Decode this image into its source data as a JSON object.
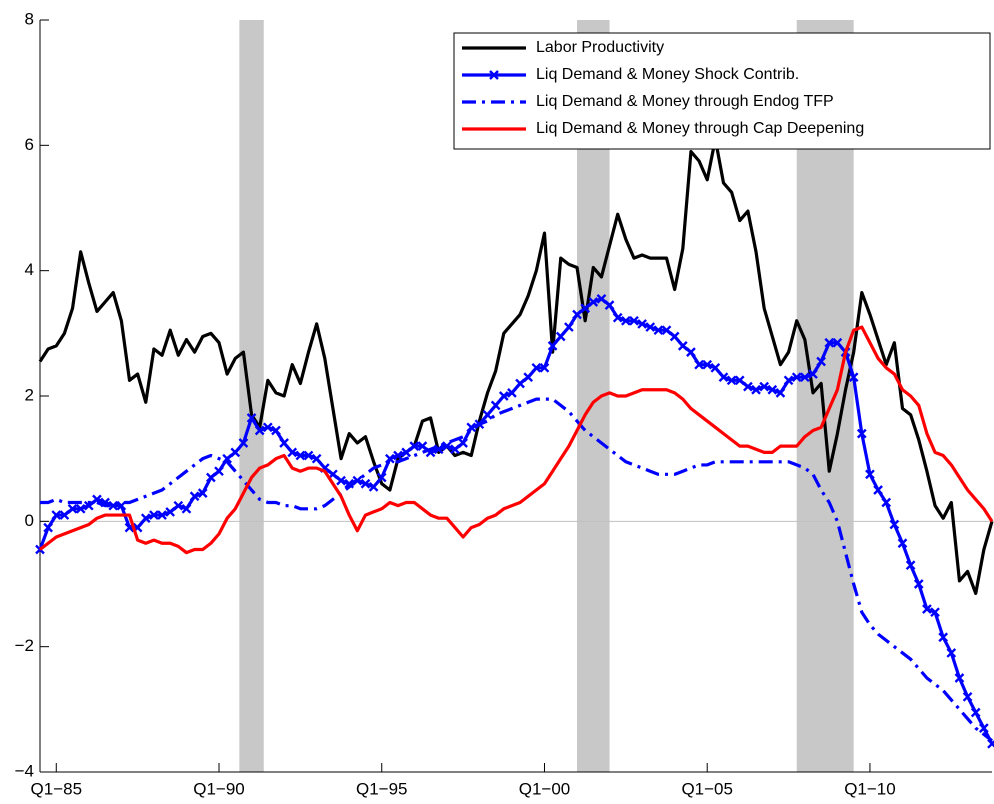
{
  "chart_data": {
    "type": "line",
    "x": [
      1984.5,
      1984.75,
      1985,
      1985.25,
      1985.5,
      1985.75,
      1986,
      1986.25,
      1986.5,
      1986.75,
      1987,
      1987.25,
      1987.5,
      1987.75,
      1988,
      1988.25,
      1988.5,
      1988.75,
      1989,
      1989.25,
      1989.5,
      1989.75,
      1990,
      1990.25,
      1990.5,
      1990.75,
      1991,
      1991.25,
      1991.5,
      1991.75,
      1992,
      1992.25,
      1992.5,
      1992.75,
      1993,
      1993.25,
      1993.5,
      1993.75,
      1994,
      1994.25,
      1994.5,
      1994.75,
      1995,
      1995.25,
      1995.5,
      1995.75,
      1996,
      1996.25,
      1996.5,
      1996.75,
      1997,
      1997.25,
      1997.5,
      1997.75,
      1998,
      1998.25,
      1998.5,
      1998.75,
      1999,
      1999.25,
      1999.5,
      1999.75,
      2000,
      2000.25,
      2000.5,
      2000.75,
      2001,
      2001.25,
      2001.5,
      2001.75,
      2002,
      2002.25,
      2002.5,
      2002.75,
      2003,
      2003.25,
      2003.5,
      2003.75,
      2004,
      2004.25,
      2004.5,
      2004.75,
      2005,
      2005.25,
      2005.5,
      2005.75,
      2006,
      2006.25,
      2006.5,
      2006.75,
      2007,
      2007.25,
      2007.5,
      2007.75,
      2008,
      2008.25,
      2008.5,
      2008.75,
      2009,
      2009.25,
      2009.5,
      2009.75,
      2010,
      2010.25,
      2010.5,
      2010.75,
      2011,
      2011.25,
      2011.5,
      2011.75,
      2012,
      2012.25,
      2012.5,
      2012.75,
      2013,
      2013.25,
      2013.5,
      2013.75
    ],
    "series": [
      {
        "name": "Labor Productivity",
        "color": "#000000",
        "linestyle": "solid",
        "marker": null,
        "values": [
          2.55,
          2.75,
          2.8,
          3.0,
          3.4,
          4.3,
          3.8,
          3.35,
          3.5,
          3.65,
          3.2,
          2.25,
          2.35,
          1.9,
          2.75,
          2.65,
          3.05,
          2.65,
          2.9,
          2.7,
          2.95,
          3.0,
          2.85,
          2.35,
          2.6,
          2.7,
          1.7,
          1.5,
          2.25,
          2.05,
          2.0,
          2.5,
          2.2,
          2.7,
          3.15,
          2.6,
          1.8,
          1.0,
          1.4,
          1.25,
          1.35,
          0.95,
          0.6,
          0.5,
          1.0,
          1.1,
          1.2,
          1.6,
          1.65,
          1.1,
          1.2,
          1.05,
          1.1,
          1.05,
          1.6,
          2.05,
          2.4,
          3.0,
          3.15,
          3.3,
          3.6,
          4.0,
          4.6,
          2.7,
          4.2,
          4.1,
          4.05,
          3.2,
          4.05,
          3.9,
          4.4,
          4.9,
          4.5,
          4.2,
          4.25,
          4.2,
          4.2,
          4.2,
          3.7,
          4.35,
          5.9,
          5.75,
          5.45,
          6.1,
          5.4,
          5.25,
          4.8,
          4.95,
          4.3,
          3.4,
          2.95,
          2.5,
          2.7,
          3.2,
          2.9,
          2.05,
          2.2,
          0.8,
          1.4,
          2.1,
          2.7,
          3.65,
          3.3,
          2.9,
          2.5,
          2.85,
          1.8,
          1.7,
          1.3,
          0.8,
          0.25,
          0.05,
          0.3,
          -0.95,
          -0.8,
          -1.15,
          -0.45,
          0.0
        ]
      },
      {
        "name": "Liq Demand & Money Shock Contrib.",
        "color": "#0000ff",
        "linestyle": "solid",
        "marker": "x",
        "values": [
          -0.45,
          -0.1,
          0.1,
          0.1,
          0.2,
          0.2,
          0.25,
          0.35,
          0.3,
          0.25,
          0.25,
          -0.1,
          -0.1,
          0.05,
          0.1,
          0.1,
          0.15,
          0.25,
          0.2,
          0.4,
          0.45,
          0.7,
          0.8,
          1.0,
          1.1,
          1.25,
          1.65,
          1.45,
          1.5,
          1.45,
          1.25,
          1.1,
          1.05,
          1.05,
          1.0,
          0.85,
          0.75,
          0.65,
          0.6,
          0.65,
          0.6,
          0.55,
          0.7,
          1.0,
          1.05,
          1.1,
          1.2,
          1.2,
          1.1,
          1.15,
          1.2,
          1.15,
          1.25,
          1.5,
          1.55,
          1.7,
          1.85,
          2.0,
          2.05,
          2.2,
          2.3,
          2.45,
          2.45,
          2.8,
          2.95,
          3.1,
          3.3,
          3.4,
          3.5,
          3.55,
          3.45,
          3.25,
          3.2,
          3.2,
          3.15,
          3.1,
          3.05,
          3.05,
          2.95,
          2.8,
          2.7,
          2.5,
          2.5,
          2.45,
          2.3,
          2.25,
          2.25,
          2.15,
          2.1,
          2.15,
          2.1,
          2.05,
          2.25,
          2.3,
          2.3,
          2.35,
          2.55,
          2.85,
          2.85,
          2.7,
          2.3,
          1.4,
          0.75,
          0.5,
          0.3,
          -0.05,
          -0.35,
          -0.7,
          -1.0,
          -1.4,
          -1.45,
          -1.85,
          -2.1,
          -2.5,
          -2.8,
          -3.05,
          -3.3,
          -3.55
        ]
      },
      {
        "name": "Liq Demand & Money through Endog TFP",
        "color": "#0000ff",
        "linestyle": "dashdot",
        "marker": null,
        "values": [
          0.3,
          0.3,
          0.35,
          0.3,
          0.3,
          0.3,
          0.3,
          0.3,
          0.25,
          0.25,
          0.3,
          0.3,
          0.35,
          0.4,
          0.45,
          0.5,
          0.6,
          0.7,
          0.8,
          0.9,
          1.0,
          1.05,
          1.0,
          0.95,
          0.8,
          0.65,
          0.5,
          0.35,
          0.3,
          0.3,
          0.25,
          0.25,
          0.2,
          0.2,
          0.2,
          0.25,
          0.35,
          0.45,
          0.55,
          0.65,
          0.75,
          0.85,
          0.9,
          0.95,
          0.95,
          1.0,
          1.05,
          1.1,
          1.15,
          1.2,
          1.25,
          1.3,
          1.35,
          1.45,
          1.55,
          1.6,
          1.7,
          1.75,
          1.8,
          1.85,
          1.9,
          1.95,
          1.95,
          1.95,
          1.85,
          1.75,
          1.6,
          1.45,
          1.35,
          1.25,
          1.15,
          1.05,
          0.95,
          0.9,
          0.85,
          0.8,
          0.75,
          0.75,
          0.75,
          0.8,
          0.85,
          0.9,
          0.9,
          0.95,
          0.95,
          0.95,
          0.95,
          0.95,
          0.95,
          0.95,
          0.95,
          0.95,
          0.95,
          0.9,
          0.85,
          0.75,
          0.5,
          0.3,
          0.0,
          -0.5,
          -1.0,
          -1.45,
          -1.65,
          -1.8,
          -1.9,
          -2.0,
          -2.1,
          -2.2,
          -2.35,
          -2.5,
          -2.6,
          -2.7,
          -2.85,
          -3.0,
          -3.15,
          -3.3,
          -3.4,
          -3.5
        ]
      },
      {
        "name": "Liq Demand & Money through Cap Deepening",
        "color": "#ff0000",
        "linestyle": "solid",
        "marker": null,
        "values": [
          -0.45,
          -0.35,
          -0.25,
          -0.2,
          -0.15,
          -0.1,
          -0.05,
          0.05,
          0.1,
          0.1,
          0.1,
          0.1,
          -0.3,
          -0.35,
          -0.3,
          -0.35,
          -0.35,
          -0.4,
          -0.5,
          -0.45,
          -0.45,
          -0.35,
          -0.2,
          0.05,
          0.2,
          0.45,
          0.7,
          0.85,
          0.9,
          1.0,
          1.05,
          0.85,
          0.8,
          0.85,
          0.85,
          0.8,
          0.6,
          0.4,
          0.1,
          -0.15,
          0.1,
          0.15,
          0.2,
          0.3,
          0.25,
          0.3,
          0.3,
          0.2,
          0.1,
          0.05,
          0.05,
          -0.1,
          -0.25,
          -0.1,
          -0.05,
          0.05,
          0.1,
          0.2,
          0.25,
          0.3,
          0.4,
          0.5,
          0.6,
          0.8,
          1.0,
          1.2,
          1.45,
          1.7,
          1.9,
          2.0,
          2.05,
          2.0,
          2.0,
          2.05,
          2.1,
          2.1,
          2.1,
          2.1,
          2.05,
          1.95,
          1.8,
          1.7,
          1.6,
          1.5,
          1.4,
          1.3,
          1.2,
          1.2,
          1.15,
          1.1,
          1.1,
          1.2,
          1.2,
          1.2,
          1.35,
          1.45,
          1.5,
          1.8,
          2.1,
          2.7,
          3.05,
          3.1,
          2.85,
          2.6,
          2.45,
          2.35,
          2.1,
          2.0,
          1.85,
          1.4,
          1.1,
          1.05,
          0.9,
          0.7,
          0.5,
          0.35,
          0.2,
          0.0
        ]
      }
    ],
    "xlim": [
      1984.5,
      2013.75
    ],
    "xticks": [
      {
        "value": 1985,
        "label": "Q1−85"
      },
      {
        "value": 1990,
        "label": "Q1−90"
      },
      {
        "value": 1995,
        "label": "Q1−95"
      },
      {
        "value": 2000,
        "label": "Q1−00"
      },
      {
        "value": 2005,
        "label": "Q1−05"
      },
      {
        "value": 2010,
        "label": "Q1−10"
      }
    ],
    "ylim": [
      -4,
      8
    ],
    "yticks": [
      {
        "value": -4,
        "label": "−4"
      },
      {
        "value": -2,
        "label": "−2"
      },
      0,
      2,
      4,
      6,
      8
    ],
    "shaded_periods": [
      [
        1990.625,
        1991.375
      ],
      [
        2001.0,
        2002.0
      ],
      [
        2007.75,
        2009.5
      ]
    ],
    "shade_color": "#c8c8c8",
    "zero_line": true,
    "grid": false,
    "legend": "upper right"
  }
}
